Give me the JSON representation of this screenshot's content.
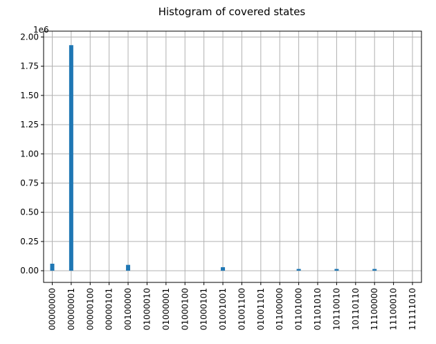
{
  "chart_data": {
    "type": "bar",
    "title": "Histogram of covered states",
    "y_offset_label": "1e6",
    "xlabel": "",
    "ylabel": "",
    "ylim": [
      -0.1,
      2.05
    ],
    "y_ticks": [
      "0.00",
      "0.25",
      "0.50",
      "0.75",
      "1.00",
      "1.25",
      "1.50",
      "1.75",
      "2.00"
    ],
    "y_tick_values": [
      0,
      0.25,
      0.5,
      0.75,
      1.0,
      1.25,
      1.5,
      1.75,
      2.0
    ],
    "categories": [
      "00000000",
      "00000001",
      "00000100",
      "00000101",
      "00100000",
      "01000010",
      "01000001",
      "01000100",
      "01000101",
      "01001001",
      "01001100",
      "01001101",
      "01100000",
      "01101000",
      "01101010",
      "10110010",
      "10110110",
      "11100000",
      "11100010",
      "11111010"
    ],
    "values": [
      0.06,
      1.93,
      0,
      0,
      0.05,
      0,
      0,
      0,
      0,
      0.03,
      0,
      0,
      0,
      0.015,
      0,
      0.015,
      0,
      0.015,
      0,
      0
    ],
    "grid": true,
    "bar_color": "#1f77b4"
  }
}
